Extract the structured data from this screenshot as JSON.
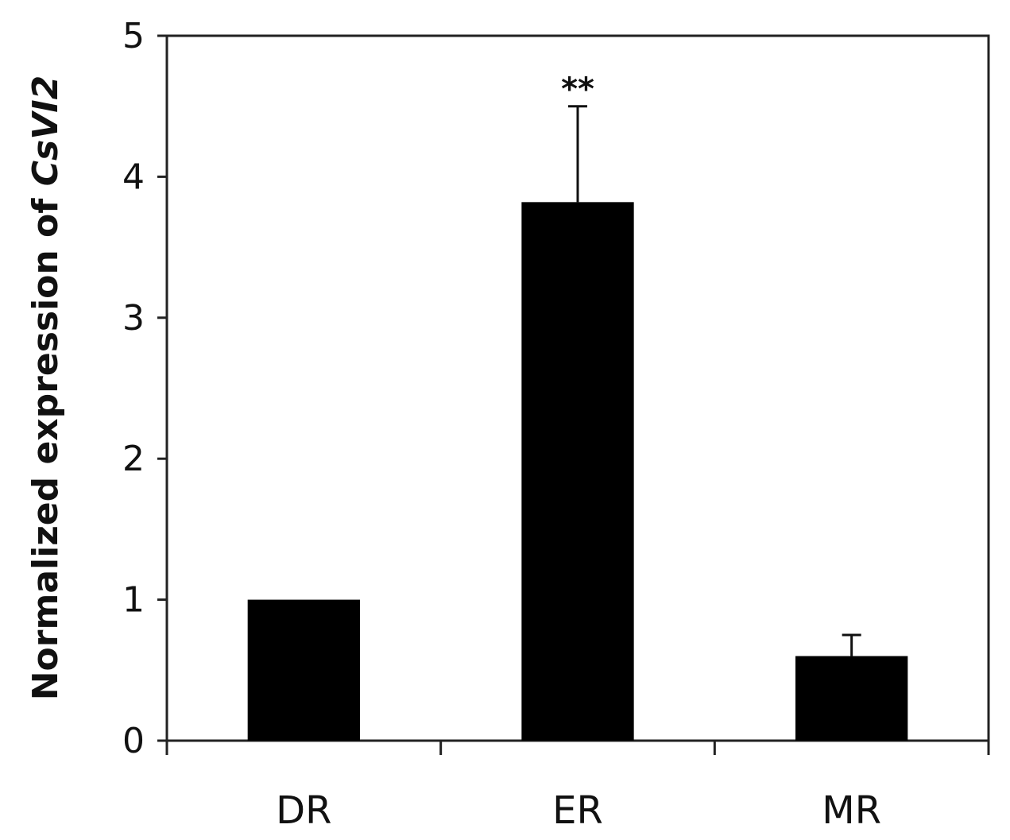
{
  "chart_data": {
    "type": "bar",
    "categories": [
      "DR",
      "ER",
      "MR"
    ],
    "values": [
      1.0,
      3.82,
      0.6
    ],
    "error_bars": [
      0.0,
      0.68,
      0.15
    ],
    "annotations": [
      "",
      "**",
      ""
    ],
    "ylabel_prefix": "Normalized expression of ",
    "ylabel_gene": "CsVI2",
    "xlabel": "",
    "title": "",
    "ylim": [
      0,
      5
    ],
    "yticks": [
      0,
      1,
      2,
      3,
      4,
      5
    ],
    "bar_color": "#000000",
    "grid": false,
    "legend": "none"
  }
}
